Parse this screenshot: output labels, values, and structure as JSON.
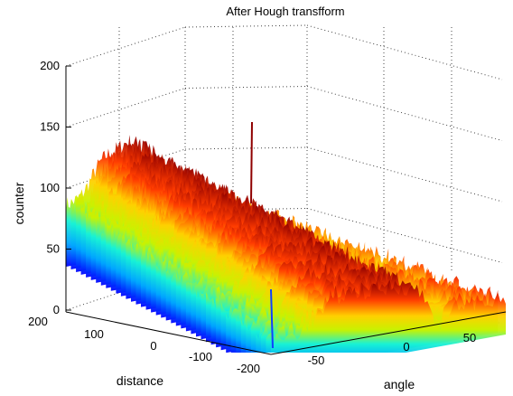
{
  "chart_data": {
    "type": "surface3d",
    "title": "After Hough transfform",
    "zlabel": "counter",
    "xlabel": "distance",
    "ylabel": "angle",
    "zlim": [
      0,
      200
    ],
    "zticks": [
      "0",
      "50",
      "100",
      "150",
      "200"
    ],
    "distance_ticks": [
      "200",
      "100",
      "0",
      "-100",
      "-200"
    ],
    "angle_ticks": [
      "-50",
      "0",
      "50"
    ],
    "grid": true,
    "colormap": "jet",
    "surface_summary": {
      "baseline_counter_range": [
        20,
        60
      ],
      "peak_counter": 170,
      "typical_peak_region_counter": [
        80,
        110
      ]
    }
  }
}
